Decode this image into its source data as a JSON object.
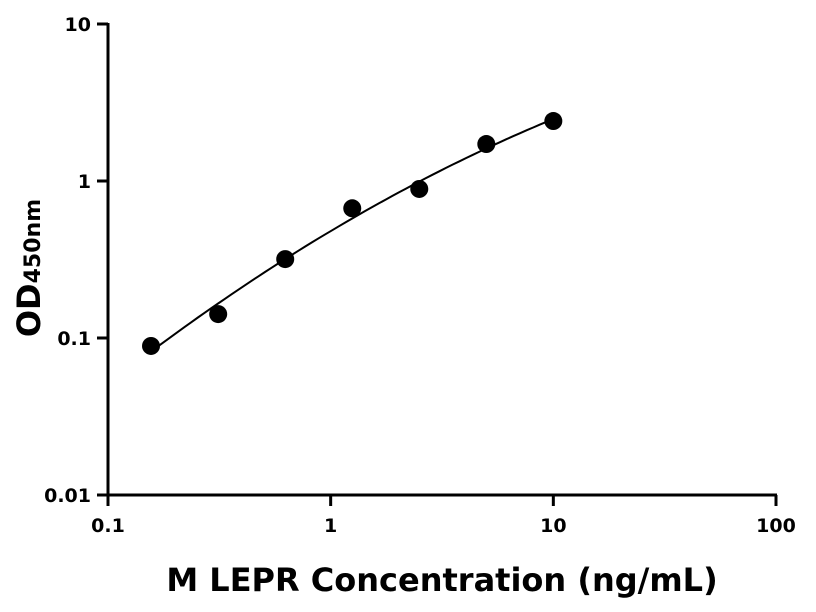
{
  "chart_data": {
    "type": "scatter",
    "xlabel": "M LEPR Concentration (ng/mL)",
    "ylabel": "OD",
    "ylabel_subscript": "450nm",
    "x_scale": "log",
    "y_scale": "log",
    "xlim": [
      0.1,
      100
    ],
    "ylim": [
      0.01,
      10
    ],
    "x_ticks": [
      "0.1",
      "1",
      "10",
      "100"
    ],
    "y_ticks": [
      "0.01",
      "0.1",
      "1",
      "10"
    ],
    "grid": false,
    "marker_color": "#000000",
    "fit_line": "smooth curve",
    "series": [
      {
        "x": [
          0.156,
          0.3125,
          0.625,
          1.25,
          2.5,
          5,
          10
        ],
        "y": [
          0.089,
          0.142,
          0.318,
          0.67,
          0.89,
          1.72,
          2.41
        ]
      }
    ]
  }
}
